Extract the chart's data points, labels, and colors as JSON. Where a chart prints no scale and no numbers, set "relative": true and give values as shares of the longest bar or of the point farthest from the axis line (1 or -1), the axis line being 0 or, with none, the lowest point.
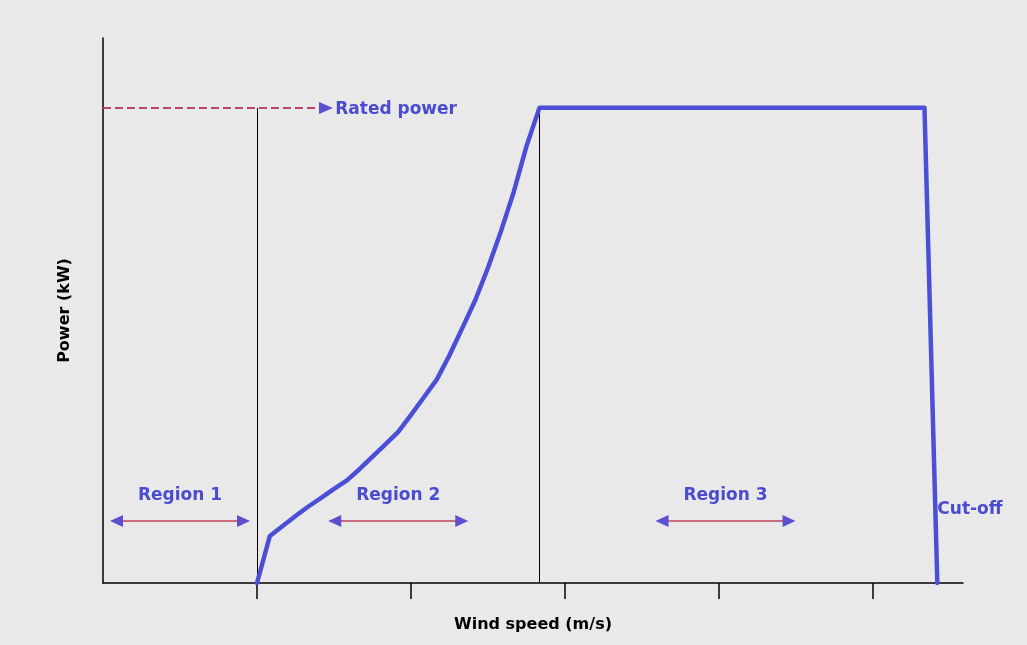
{
  "chart_data": {
    "type": "line",
    "relative": true,
    "xlabel": "Wind speed (m/s)",
    "ylabel": "Power (kW)",
    "categories": [
      null,
      null,
      null,
      null,
      null,
      null,
      null,
      null,
      null,
      null,
      null,
      null,
      null,
      null,
      null,
      null,
      null,
      null,
      null,
      null,
      null,
      null,
      null,
      null,
      null,
      null,
      null,
      null,
      null,
      null,
      null,
      null,
      null,
      null,
      null,
      null,
      null,
      null,
      null,
      null,
      null,
      null,
      null,
      null,
      null,
      null,
      null,
      null,
      null,
      null,
      null,
      null,
      null,
      null,
      null,
      null,
      null,
      null,
      null,
      null,
      null,
      null,
      null,
      null,
      null,
      null,
      null,
      null
    ],
    "grid": false,
    "marker": "none",
    "line_style": "solid",
    "series": [
      {
        "color": "#4b4fd6",
        "values": [
          null,
          null,
          null,
          null,
          null,
          null,
          null,
          null,
          null,
          null,
          null,
          null,
          0,
          0.099,
          0.12,
          0.141,
          0.161,
          0.179,
          0.198,
          0.216,
          0.24,
          0.266,
          0.292,
          0.318,
          0.354,
          0.391,
          0.428,
          0.48,
          0.537,
          0.595,
          0.664,
          0.74,
          0.823,
          0.92,
          1,
          1,
          1,
          1,
          1,
          1,
          1,
          1,
          1,
          1,
          1,
          1,
          1,
          1,
          1,
          1,
          1,
          1,
          1,
          1,
          1,
          1,
          1,
          1,
          1,
          1,
          1,
          1,
          1,
          1,
          1,
          0,
          null,
          null
        ]
      }
    ],
    "ref_lines": [
      {
        "axis": "y",
        "value": 1,
        "label": "Rated power",
        "color": "#b8456a",
        "line_style": "dashed"
      }
    ],
    "annotations": [
      "Region 1",
      "Region 2",
      "Region 3",
      "Cut-off"
    ]
  }
}
